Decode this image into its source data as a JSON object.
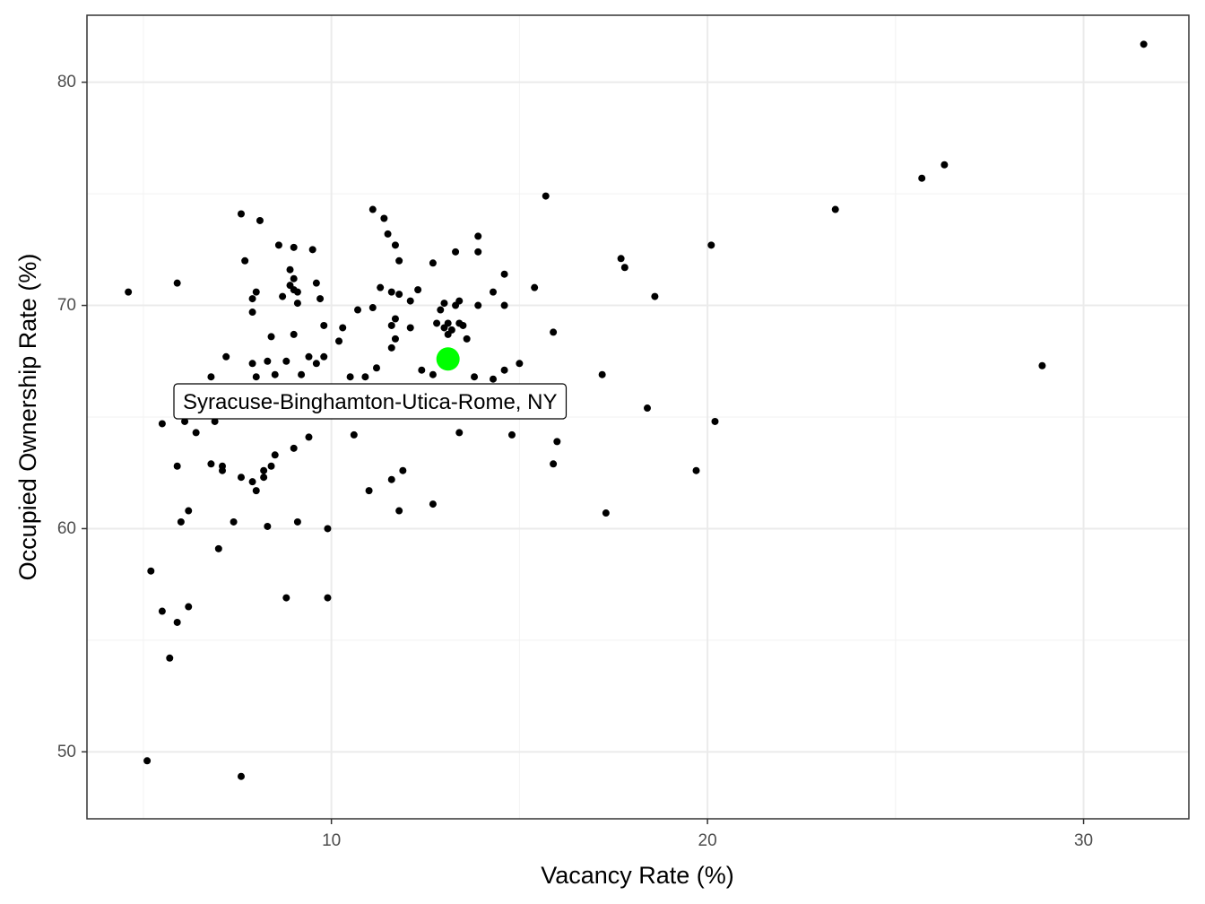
{
  "chart_data": {
    "type": "scatter",
    "title": "",
    "xlabel": "Vacancy Rate (%)",
    "ylabel": "Occupied Ownership Rate (%)",
    "xlim": [
      3.5,
      32.8
    ],
    "ylim": [
      47.0,
      83.0
    ],
    "x_ticks": [
      10,
      20,
      30
    ],
    "y_ticks": [
      50,
      60,
      70,
      80
    ],
    "x_tick_labels": [
      "10",
      "20",
      "30"
    ],
    "y_tick_labels": [
      "50",
      "60",
      "70",
      "80"
    ],
    "grid": true,
    "legend": "none",
    "point_color": "#000000",
    "highlight_color": "#00ff00",
    "highlight": {
      "label": "Syracuse-Binghamton-Utica-Rome, NY",
      "x": 13.1,
      "y": 67.6
    },
    "points": [
      [
        4.6,
        70.6
      ],
      [
        5.1,
        49.6
      ],
      [
        5.2,
        58.1
      ],
      [
        5.5,
        56.3
      ],
      [
        5.5,
        64.7
      ],
      [
        5.7,
        54.2
      ],
      [
        5.9,
        62.8
      ],
      [
        5.9,
        55.8
      ],
      [
        5.9,
        71.0
      ],
      [
        6.0,
        60.3
      ],
      [
        6.1,
        64.8
      ],
      [
        6.2,
        60.8
      ],
      [
        6.2,
        56.5
      ],
      [
        6.4,
        64.3
      ],
      [
        6.8,
        66.8
      ],
      [
        6.8,
        62.9
      ],
      [
        6.9,
        64.8
      ],
      [
        7.0,
        59.1
      ],
      [
        7.1,
        62.6
      ],
      [
        7.1,
        62.8
      ],
      [
        7.2,
        67.7
      ],
      [
        7.4,
        60.3
      ],
      [
        7.6,
        62.3
      ],
      [
        7.6,
        74.1
      ],
      [
        7.6,
        48.9
      ],
      [
        7.7,
        72.0
      ],
      [
        7.9,
        62.1
      ],
      [
        7.9,
        69.7
      ],
      [
        7.9,
        70.3
      ],
      [
        7.9,
        67.4
      ],
      [
        8.0,
        70.6
      ],
      [
        8.0,
        66.8
      ],
      [
        8.0,
        61.7
      ],
      [
        8.0,
        65.2
      ],
      [
        8.1,
        73.8
      ],
      [
        8.2,
        62.6
      ],
      [
        8.2,
        62.3
      ],
      [
        8.3,
        67.5
      ],
      [
        8.3,
        60.1
      ],
      [
        8.4,
        68.6
      ],
      [
        8.4,
        62.8
      ],
      [
        8.5,
        66.9
      ],
      [
        8.5,
        63.3
      ],
      [
        8.6,
        72.7
      ],
      [
        8.7,
        70.4
      ],
      [
        8.8,
        67.5
      ],
      [
        8.8,
        56.9
      ],
      [
        8.9,
        71.6
      ],
      [
        8.9,
        70.9
      ],
      [
        9.0,
        72.6
      ],
      [
        9.0,
        71.2
      ],
      [
        9.0,
        70.7
      ],
      [
        9.0,
        68.7
      ],
      [
        9.0,
        63.6
      ],
      [
        9.1,
        70.6
      ],
      [
        9.1,
        70.1
      ],
      [
        9.1,
        60.3
      ],
      [
        9.2,
        66.9
      ],
      [
        9.4,
        67.7
      ],
      [
        9.4,
        64.1
      ],
      [
        9.5,
        72.5
      ],
      [
        9.6,
        71.0
      ],
      [
        9.6,
        67.4
      ],
      [
        9.7,
        70.3
      ],
      [
        9.8,
        69.1
      ],
      [
        9.8,
        67.7
      ],
      [
        9.8,
        65.4
      ],
      [
        9.9,
        60.0
      ],
      [
        9.9,
        56.9
      ],
      [
        10.2,
        68.4
      ],
      [
        10.3,
        69.0
      ],
      [
        10.5,
        66.8
      ],
      [
        10.6,
        64.2
      ],
      [
        10.7,
        69.8
      ],
      [
        10.9,
        66.8
      ],
      [
        11.0,
        61.7
      ],
      [
        11.1,
        69.9
      ],
      [
        11.2,
        67.2
      ],
      [
        11.1,
        74.3
      ],
      [
        11.3,
        70.8
      ],
      [
        11.4,
        73.9
      ],
      [
        11.5,
        73.2
      ],
      [
        11.6,
        70.6
      ],
      [
        11.6,
        68.1
      ],
      [
        11.6,
        62.2
      ],
      [
        11.6,
        69.1
      ],
      [
        11.7,
        69.4
      ],
      [
        11.7,
        68.5
      ],
      [
        11.7,
        72.7
      ],
      [
        11.8,
        72.0
      ],
      [
        11.8,
        70.5
      ],
      [
        11.8,
        60.8
      ],
      [
        11.9,
        62.6
      ],
      [
        12.1,
        70.2
      ],
      [
        12.1,
        69.0
      ],
      [
        12.3,
        70.7
      ],
      [
        12.4,
        67.1
      ],
      [
        12.7,
        71.9
      ],
      [
        12.7,
        66.9
      ],
      [
        12.7,
        61.1
      ],
      [
        12.8,
        69.2
      ],
      [
        13.0,
        70.1
      ],
      [
        12.9,
        69.8
      ],
      [
        13.0,
        69.0
      ],
      [
        13.1,
        68.7
      ],
      [
        13.1,
        69.2
      ],
      [
        13.2,
        68.9
      ],
      [
        13.3,
        72.4
      ],
      [
        13.3,
        70.0
      ],
      [
        13.4,
        69.2
      ],
      [
        13.4,
        70.2
      ],
      [
        13.4,
        64.3
      ],
      [
        13.5,
        69.1
      ],
      [
        13.6,
        68.5
      ],
      [
        13.8,
        66.8
      ],
      [
        13.9,
        73.1
      ],
      [
        13.9,
        72.4
      ],
      [
        13.9,
        70.0
      ],
      [
        14.3,
        70.6
      ],
      [
        14.3,
        66.7
      ],
      [
        14.6,
        71.4
      ],
      [
        14.6,
        70.0
      ],
      [
        14.6,
        67.1
      ],
      [
        14.8,
        64.2
      ],
      [
        15.0,
        67.4
      ],
      [
        15.4,
        70.8
      ],
      [
        15.7,
        74.9
      ],
      [
        15.9,
        68.8
      ],
      [
        15.9,
        62.9
      ],
      [
        16.0,
        63.9
      ],
      [
        17.2,
        66.9
      ],
      [
        17.3,
        60.7
      ],
      [
        17.7,
        72.1
      ],
      [
        17.8,
        71.7
      ],
      [
        18.4,
        65.4
      ],
      [
        18.6,
        70.4
      ],
      [
        19.7,
        62.6
      ],
      [
        20.1,
        72.7
      ],
      [
        20.2,
        64.8
      ],
      [
        23.4,
        74.3
      ],
      [
        25.7,
        75.7
      ],
      [
        26.3,
        76.3
      ],
      [
        28.9,
        67.3
      ],
      [
        31.6,
        81.7
      ]
    ]
  }
}
